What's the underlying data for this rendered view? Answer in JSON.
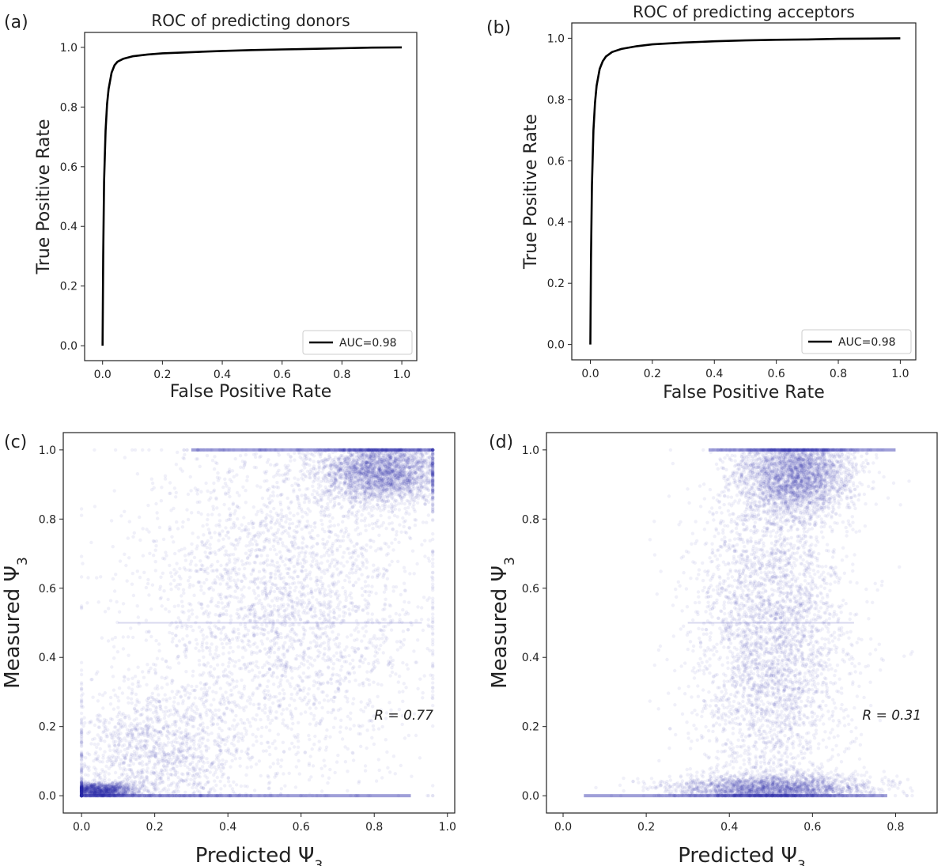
{
  "chart_data": [
    {
      "panel": "(a)",
      "type": "line",
      "title": "ROC of predicting donors",
      "xlabel": "False Positive Rate",
      "ylabel": "True Positive Rate",
      "xlim": [
        -0.06,
        1.05
      ],
      "ylim": [
        -0.05,
        1.05
      ],
      "xticks": [
        "0.0",
        "0.2",
        "0.4",
        "0.6",
        "0.8",
        "1.0"
      ],
      "yticks": [
        "0.0",
        "0.2",
        "0.4",
        "0.6",
        "0.8",
        "1.0"
      ],
      "legend_position": "lower-right",
      "series": [
        {
          "name": "AUC=0.98",
          "color": "#000000",
          "x": [
            0.0,
            0.002,
            0.005,
            0.01,
            0.015,
            0.02,
            0.03,
            0.04,
            0.05,
            0.07,
            0.1,
            0.15,
            0.2,
            0.3,
            0.4,
            0.5,
            0.6,
            0.7,
            0.8,
            0.9,
            1.0
          ],
          "y": [
            0.0,
            0.3,
            0.55,
            0.72,
            0.81,
            0.86,
            0.915,
            0.94,
            0.952,
            0.962,
            0.97,
            0.976,
            0.98,
            0.984,
            0.988,
            0.991,
            0.993,
            0.995,
            0.997,
            0.999,
            1.0
          ]
        }
      ]
    },
    {
      "panel": "(b)",
      "type": "line",
      "title": "ROC of predicting acceptors",
      "xlabel": "False Positive Rate",
      "ylabel": "True Positive Rate",
      "xlim": [
        -0.06,
        1.05
      ],
      "ylim": [
        -0.05,
        1.05
      ],
      "xticks": [
        "0.0",
        "0.2",
        "0.4",
        "0.6",
        "0.8",
        "1.0"
      ],
      "yticks": [
        "0.0",
        "0.2",
        "0.4",
        "0.6",
        "0.8",
        "1.0"
      ],
      "legend_position": "lower-right",
      "series": [
        {
          "name": "AUC=0.98",
          "color": "#000000",
          "x": [
            0.0,
            0.002,
            0.005,
            0.01,
            0.015,
            0.02,
            0.03,
            0.04,
            0.05,
            0.07,
            0.1,
            0.15,
            0.2,
            0.3,
            0.4,
            0.5,
            0.6,
            0.7,
            0.8,
            0.9,
            1.0
          ],
          "y": [
            0.0,
            0.28,
            0.52,
            0.7,
            0.79,
            0.845,
            0.9,
            0.925,
            0.94,
            0.955,
            0.965,
            0.974,
            0.98,
            0.986,
            0.99,
            0.993,
            0.995,
            0.996,
            0.998,
            0.999,
            1.0
          ]
        }
      ]
    },
    {
      "panel": "(c)",
      "type": "scatter",
      "xlabel": "Predicted Ψ",
      "xlabel_sub": "3",
      "ylabel": "Measured Ψ",
      "ylabel_sub": "3",
      "xlim": [
        -0.05,
        1.02
      ],
      "ylim": [
        -0.05,
        1.05
      ],
      "xticks": [
        "0.0",
        "0.2",
        "0.4",
        "0.6",
        "0.8",
        "1.0"
      ],
      "yticks": [
        "0.0",
        "0.2",
        "0.4",
        "0.6",
        "0.8",
        "1.0"
      ],
      "point_color": "#2b2ba8",
      "annotation": "R = 0.77",
      "annotation_pos": [
        0.8,
        0.22
      ],
      "density_clusters": [
        {
          "x": 0.82,
          "y": 0.94,
          "sx": 0.09,
          "sy": 0.05,
          "weight": 0.32
        },
        {
          "x": 0.05,
          "y": 0.015,
          "sx": 0.05,
          "sy": 0.012,
          "weight": 0.16
        },
        {
          "x": 0.55,
          "y": 0.55,
          "sx": 0.2,
          "sy": 0.25,
          "weight": 0.36
        },
        {
          "x": 0.2,
          "y": 0.12,
          "sx": 0.12,
          "sy": 0.1,
          "weight": 0.16
        }
      ],
      "bands": [
        {
          "y": 0.0,
          "x_range": [
            0.0,
            0.9
          ]
        },
        {
          "y": 1.0,
          "x_range": [
            0.3,
            0.96
          ]
        },
        {
          "y": 0.5,
          "x_range": [
            0.1,
            0.93
          ]
        }
      ]
    },
    {
      "panel": "(d)",
      "type": "scatter",
      "xlabel": "Predicted Ψ",
      "xlabel_sub": "3",
      "ylabel": "Measured Ψ",
      "ylabel_sub": "3",
      "xlim": [
        -0.04,
        0.9
      ],
      "ylim": [
        -0.05,
        1.05
      ],
      "xticks": [
        "0.0",
        "0.2",
        "0.4",
        "0.6",
        "0.8"
      ],
      "yticks": [
        "0.0",
        "0.2",
        "0.4",
        "0.6",
        "0.8",
        "1.0"
      ],
      "point_color": "#2b2ba8",
      "annotation": "R = 0.31",
      "annotation_pos": [
        0.72,
        0.22
      ],
      "density_clusters": [
        {
          "x": 0.56,
          "y": 0.93,
          "sx": 0.07,
          "sy": 0.06,
          "weight": 0.34
        },
        {
          "x": 0.5,
          "y": 0.02,
          "sx": 0.12,
          "sy": 0.02,
          "weight": 0.26
        },
        {
          "x": 0.5,
          "y": 0.45,
          "sx": 0.09,
          "sy": 0.25,
          "weight": 0.4
        }
      ],
      "bands": [
        {
          "y": 0.0,
          "x_range": [
            0.05,
            0.78
          ]
        },
        {
          "y": 1.0,
          "x_range": [
            0.35,
            0.8
          ]
        },
        {
          "y": 0.5,
          "x_range": [
            0.3,
            0.7
          ]
        }
      ]
    }
  ]
}
